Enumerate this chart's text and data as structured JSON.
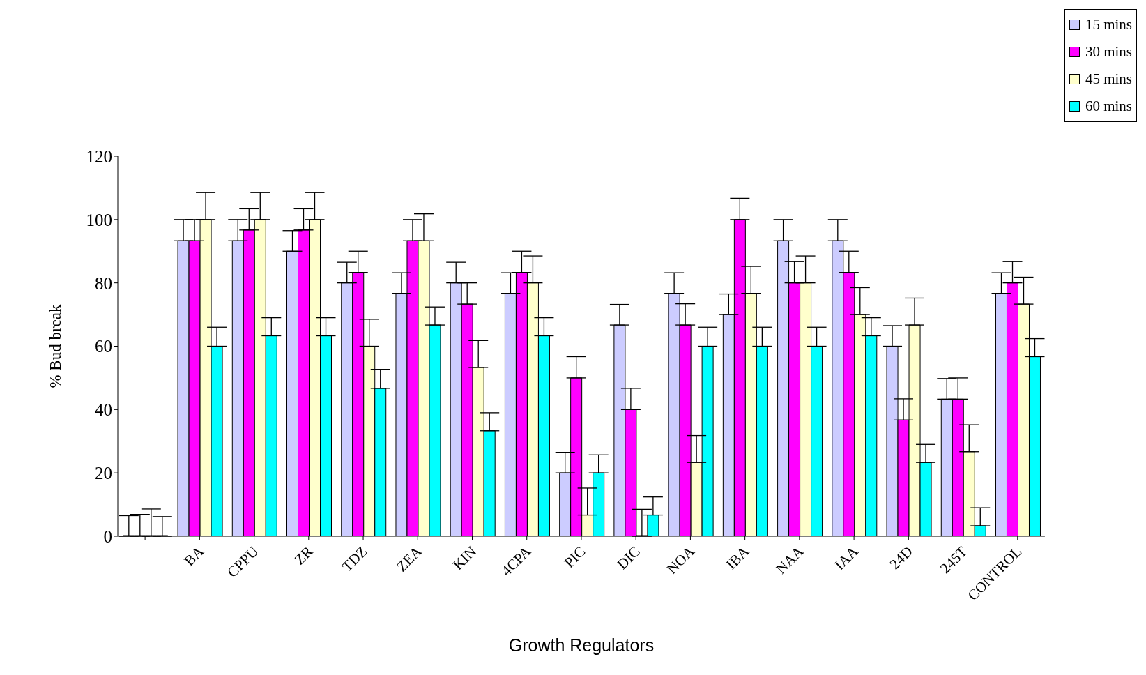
{
  "chart_data": {
    "type": "bar",
    "xlabel": "Growth Regulators",
    "ylabel": "% Bud break",
    "categories": [
      null,
      "BA",
      "CPPU",
      "ZR",
      "TDZ",
      "ZEA",
      "KIN",
      "4CPA",
      "PIC",
      "DIC",
      "NOA",
      "IBA",
      "NAA",
      "IAA",
      "24D",
      "245T",
      "CONTROL"
    ],
    "series": [
      {
        "name": "15 mins",
        "color": "#ccccff",
        "values": [
          0,
          93.3,
          93.3,
          90,
          80,
          76.7,
          80,
          76.7,
          20,
          66.7,
          76.7,
          70,
          93.3,
          93.3,
          60,
          43.3,
          76.7
        ],
        "errors": [
          [
            0,
            6.5
          ],
          [
            93.3,
            100
          ],
          [
            93.3,
            100
          ],
          [
            90,
            96.5
          ],
          [
            80,
            86.5
          ],
          [
            76.7,
            83.2
          ],
          [
            80,
            86.5
          ],
          [
            76.7,
            83.2
          ],
          [
            20,
            26.5
          ],
          [
            66.7,
            73.2
          ],
          [
            76.7,
            83.2
          ],
          [
            70,
            76.5
          ],
          [
            93.3,
            100
          ],
          [
            93.3,
            100
          ],
          [
            60,
            66.5
          ],
          [
            43.3,
            49.8
          ],
          [
            76.7,
            83.2
          ]
        ]
      },
      {
        "name": "30 mins",
        "color": "#ff00ff",
        "values": [
          0,
          93.3,
          96.7,
          96.7,
          83.3,
          93.3,
          73.3,
          83.3,
          50,
          40,
          66.7,
          100,
          80,
          83.3,
          36.7,
          43.3,
          80
        ],
        "errors": [
          [
            0,
            6.9
          ],
          [
            93.3,
            100
          ],
          [
            96.7,
            103.4
          ],
          [
            96.7,
            103.4
          ],
          [
            83.3,
            90
          ],
          [
            93.3,
            100
          ],
          [
            73.3,
            80
          ],
          [
            83.3,
            90
          ],
          [
            50,
            56.7
          ],
          [
            40,
            46.7
          ],
          [
            66.7,
            73.4
          ],
          [
            100,
            106.7
          ],
          [
            80,
            86.7
          ],
          [
            83.3,
            90
          ],
          [
            36.7,
            43.4
          ],
          [
            43.3,
            50
          ],
          [
            80,
            86.7
          ]
        ]
      },
      {
        "name": "45 mins",
        "color": "#ffffcc",
        "values": [
          0,
          100,
          100,
          100,
          60,
          93.3,
          53.3,
          80,
          6.7,
          0,
          23.3,
          76.7,
          80,
          70,
          66.7,
          26.7,
          73.3
        ],
        "errors": [
          [
            0,
            8.6
          ],
          [
            100,
            108.5
          ],
          [
            100,
            108.5
          ],
          [
            100,
            108.5
          ],
          [
            60,
            68.5
          ],
          [
            93.3,
            101.8
          ],
          [
            53.3,
            61.8
          ],
          [
            80,
            88.5
          ],
          [
            6.7,
            15.2
          ],
          [
            0,
            8.5
          ],
          [
            23.3,
            31.8
          ],
          [
            76.7,
            85.2
          ],
          [
            80,
            88.5
          ],
          [
            70,
            78.5
          ],
          [
            66.7,
            75.2
          ],
          [
            26.7,
            35.2
          ],
          [
            73.3,
            81.8
          ]
        ]
      },
      {
        "name": "60 mins",
        "color": "#00ffff",
        "values": [
          0,
          60,
          63.3,
          63.3,
          46.7,
          66.7,
          33.3,
          63.3,
          20,
          6.7,
          60,
          60,
          60,
          63.3,
          23.3,
          3.3,
          56.7
        ],
        "errors": [
          [
            0,
            6.2
          ],
          [
            60,
            66
          ],
          [
            63.3,
            69
          ],
          [
            63.3,
            69
          ],
          [
            46.7,
            52.7
          ],
          [
            66.7,
            72.4
          ],
          [
            33.3,
            39
          ],
          [
            63.3,
            69
          ],
          [
            20,
            25.7
          ],
          [
            6.7,
            12.4
          ],
          [
            60,
            66
          ],
          [
            60,
            66
          ],
          [
            60,
            66
          ],
          [
            63.3,
            69
          ],
          [
            23.3,
            29
          ],
          [
            3.3,
            9
          ],
          [
            56.7,
            62.4
          ]
        ]
      }
    ],
    "ylim": [
      0,
      120
    ],
    "yticks": [
      0,
      20,
      40,
      60,
      80,
      100,
      120
    ],
    "grid": false,
    "legend": "top right"
  }
}
